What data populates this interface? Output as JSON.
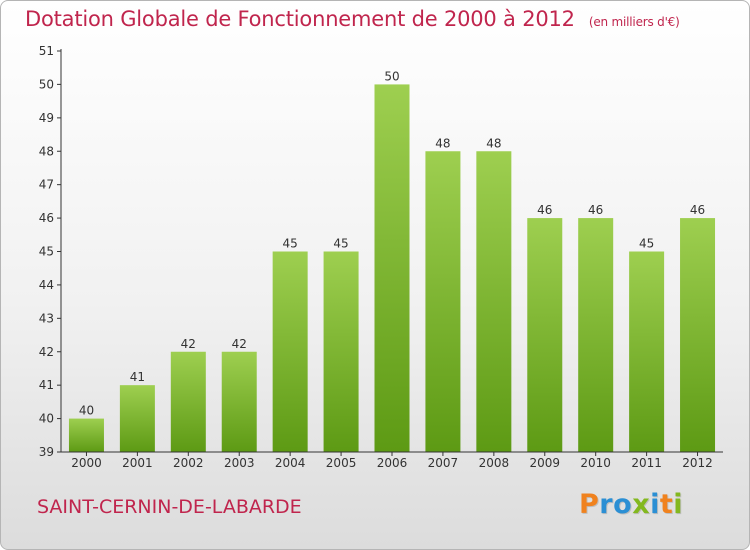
{
  "header": {
    "title": "Dotation Globale de Fonctionnement de 2000 à 2012",
    "subtitle": "(en milliers d'€)"
  },
  "footer": {
    "town": "SAINT-CERNIN-DE-LABARDE"
  },
  "brand": {
    "text": "Proxiti",
    "letter_colors": [
      "#f0821e",
      "#2b8fd4",
      "#2b8fd4",
      "#83b81f",
      "#2b8fd4",
      "#f0821e",
      "#83b81f"
    ]
  },
  "colors": {
    "title": "#c0254d",
    "bar_top": "#9ecf50",
    "bar_bottom": "#5d9a14",
    "axis": "#333333"
  },
  "chart_data": {
    "type": "bar",
    "title": "Dotation Globale de Fonctionnement de 2000 à 2012",
    "subtitle": "(en milliers d'€)",
    "categories": [
      "2000",
      "2001",
      "2002",
      "2003",
      "2004",
      "2005",
      "2006",
      "2007",
      "2008",
      "2009",
      "2010",
      "2011",
      "2012"
    ],
    "values": [
      40,
      41,
      42,
      42,
      45,
      45,
      50,
      48,
      48,
      46,
      46,
      45,
      46
    ],
    "ylim": [
      39,
      51
    ],
    "yticks": [
      39,
      40,
      41,
      42,
      43,
      44,
      45,
      46,
      47,
      48,
      49,
      50,
      51
    ],
    "grid": false,
    "data_labels": true
  }
}
